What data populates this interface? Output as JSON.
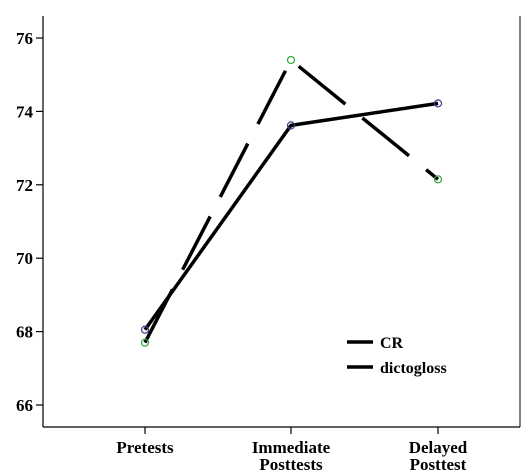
{
  "chart_data": {
    "type": "line",
    "categories": [
      "Pretests",
      "Immediate Posttests",
      "Delayed Posttest"
    ],
    "category_label_lines": [
      [
        "Pretests"
      ],
      [
        "Immediate",
        "Posttests"
      ],
      [
        "Delayed",
        "Posttest"
      ]
    ],
    "y_ticks": [
      66,
      68,
      70,
      72,
      74,
      76
    ],
    "ylim": [
      65.4,
      76.6
    ],
    "title": "",
    "xlabel": "",
    "ylabel": "",
    "grid": false,
    "legend_position": "bottom-right inside plot",
    "series": [
      {
        "name": "CR",
        "values": [
          68.05,
          73.62,
          74.22
        ],
        "line_style": "solid",
        "line_color": "#000000",
        "marker_color": "#3a3f8f"
      },
      {
        "name": "dictogloss",
        "values": [
          67.7,
          75.4,
          72.15
        ],
        "line_style": "dashed",
        "line_color": "#000000",
        "marker_color": "#2fa83a"
      }
    ]
  }
}
